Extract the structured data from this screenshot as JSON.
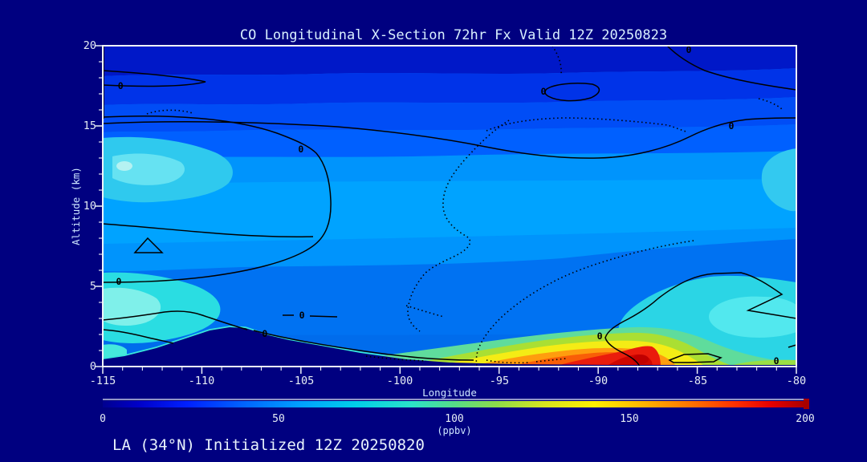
{
  "title": "CO Longitudinal X-Section 72hr  Fx Valid 12Z 20250823",
  "footer": "LA (34°N) Initialized 12Z 20250820",
  "axes": {
    "x": {
      "label": "Longitude",
      "min": -115,
      "max": -80,
      "major_step": 5,
      "minor_step": 1,
      "tick_labels": [
        "-115",
        "-110",
        "-105",
        "-100",
        "-95",
        "-90",
        "-85",
        "-80"
      ]
    },
    "y": {
      "label": "Altitude (km)",
      "min": 0,
      "max": 20,
      "major_step": 5,
      "minor_step": 1,
      "tick_labels": [
        "0",
        "5",
        "10",
        "15",
        "20"
      ]
    }
  },
  "colorbar": {
    "min": 0,
    "max": 200,
    "tick_labels": [
      "0",
      "50",
      "100",
      "150",
      "200"
    ],
    "units": "(ppbv)",
    "stops": [
      {
        "o": 0.0,
        "c": "#000090"
      },
      {
        "o": 0.05,
        "c": "#0000C8"
      },
      {
        "o": 0.12,
        "c": "#0020FF"
      },
      {
        "o": 0.2,
        "c": "#0064FF"
      },
      {
        "o": 0.28,
        "c": "#00A0FF"
      },
      {
        "o": 0.36,
        "c": "#00CFE8"
      },
      {
        "o": 0.44,
        "c": "#2BE3C8"
      },
      {
        "o": 0.5,
        "c": "#55DD88"
      },
      {
        "o": 0.56,
        "c": "#8CDC4A"
      },
      {
        "o": 0.63,
        "c": "#D8E41E"
      },
      {
        "o": 0.7,
        "c": "#FFF000"
      },
      {
        "o": 0.77,
        "c": "#FFB400"
      },
      {
        "o": 0.84,
        "c": "#FF7000"
      },
      {
        "o": 0.9,
        "c": "#FF3000"
      },
      {
        "o": 0.95,
        "c": "#E80000"
      },
      {
        "o": 1.0,
        "c": "#A80000"
      }
    ]
  },
  "colors": {
    "background": "#000080",
    "plot_border": "#f0f4f8",
    "title_text": "#d9f0ff",
    "tick_text": "#e6edf4",
    "axis_label_text": "#cde6ff",
    "contour_line": "#000000",
    "terrain_mask": "#000080",
    "hotspot_core": "#CE0600"
  },
  "chart_data": {
    "type": "filled_contour_cross_section",
    "variable": "CO",
    "units": "ppbv",
    "title": "CO Longitudinal X-Section 72hr  Fx Valid 12Z 20250823",
    "subtitle": "LA (34°N) Initialized 12Z 20250820",
    "forecast_hour": "72hr",
    "valid_time": "12Z 20250823",
    "initialized_time": "12Z 20250820",
    "section_latitude": "34°N",
    "x_axis": {
      "label": "Longitude",
      "range": [
        -115,
        -80
      ],
      "ticks": [
        -115,
        -110,
        -105,
        -100,
        -95,
        -90,
        -85,
        -80
      ]
    },
    "y_axis": {
      "label": "Altitude (km)",
      "range": [
        0,
        20
      ],
      "ticks": [
        0,
        5,
        10,
        15,
        20
      ]
    },
    "color_scale": {
      "range": [
        0,
        200
      ],
      "units": "ppbv",
      "ticks": [
        0,
        50,
        100,
        150,
        200
      ],
      "palette": "navy-blue-azure-cyan-green-yellow-orange-red rainbow"
    },
    "contour_line_level": 0,
    "zero_contour_labels": [
      {
        "lon": -114.1,
        "km": 17.5,
        "text": "0"
      },
      {
        "lon": -105.0,
        "km": 13.55,
        "text": "0"
      },
      {
        "lon": -114.19,
        "km": 5.3,
        "text": "0"
      },
      {
        "lon": -92.76,
        "km": 17.15,
        "text": "0"
      },
      {
        "lon": -85.43,
        "km": 19.75,
        "text": "0"
      },
      {
        "lon": -83.28,
        "km": 15.0,
        "text": "0"
      },
      {
        "lon": -104.95,
        "km": 3.2,
        "text": "0"
      },
      {
        "lon": -106.82,
        "km": 2.05,
        "text": "0"
      },
      {
        "lon": -89.92,
        "km": 1.9,
        "text": "0"
      },
      {
        "lon": -81.01,
        "km": 0.35,
        "text": "0"
      }
    ],
    "terrain_profile_lon_km": [
      [
        -115,
        0.45
      ],
      [
        -113.9,
        0.65
      ],
      [
        -112.3,
        1.15
      ],
      [
        -110.7,
        1.8
      ],
      [
        -109.6,
        2.25
      ],
      [
        -108.6,
        2.45
      ],
      [
        -107.8,
        2.4
      ],
      [
        -106.8,
        2.0
      ],
      [
        -105.6,
        1.65
      ],
      [
        -104.0,
        1.3
      ],
      [
        -102.0,
        0.85
      ],
      [
        -99.7,
        0.45
      ],
      [
        -97.5,
        0.25
      ],
      [
        -94.2,
        0.15
      ],
      [
        -89.4,
        0.1
      ],
      [
        -80.0,
        0.1
      ]
    ],
    "features": [
      {
        "name": "surface CO maximum",
        "lon": -87.8,
        "altitude_km": 0.4,
        "value_ppbv": 200
      },
      {
        "name": "low-level CO plume",
        "lon_range": [
          -98,
          -83
        ],
        "altitude_km_range": [
          0,
          3
        ],
        "value_ppbv": "80-200"
      },
      {
        "name": "boundary-layer CO over western slope",
        "lon_range": [
          -115,
          -111
        ],
        "altitude_km_range": [
          0,
          5
        ],
        "value_ppbv": "60-90"
      },
      {
        "name": "cyan moderate-CO pocket right of section",
        "lon_range": [
          -87,
          -80
        ],
        "altitude_km_range": [
          0,
          5
        ],
        "value_ppbv": "60-75"
      },
      {
        "name": "mid-troposphere background",
        "altitude_km_range": [
          5,
          13
        ],
        "value_ppbv": "40-55"
      },
      {
        "name": "upper-level low CO (stratosphere)",
        "altitude_km_range": [
          17,
          20
        ],
        "value_ppbv": "0-25"
      }
    ]
  }
}
